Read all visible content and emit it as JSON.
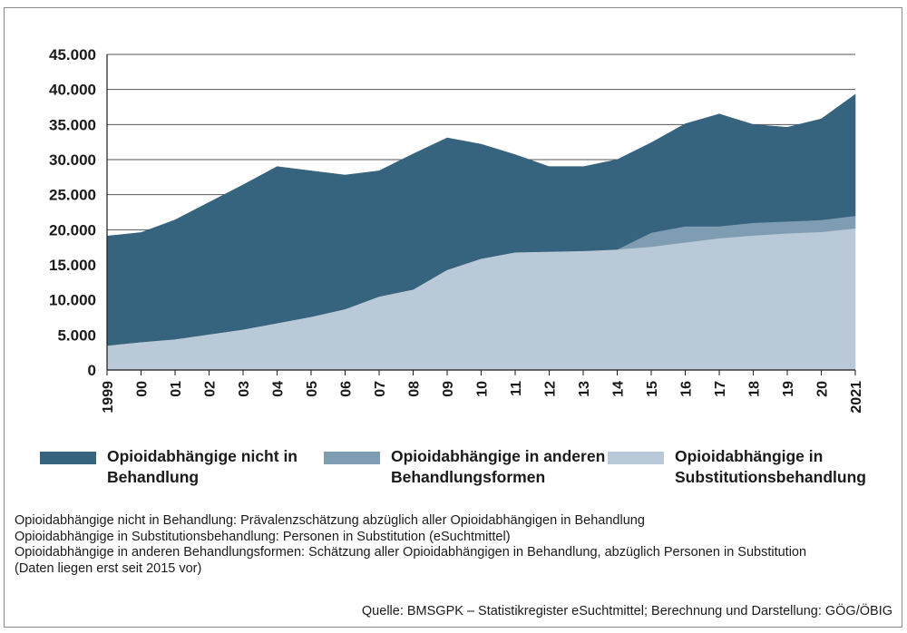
{
  "chart_data": {
    "type": "area",
    "stacked": true,
    "categories": [
      "1999",
      "00",
      "01",
      "02",
      "03",
      "04",
      "05",
      "06",
      "07",
      "08",
      "09",
      "10",
      "11",
      "12",
      "13",
      "14",
      "15",
      "16",
      "17",
      "18",
      "19",
      "20",
      "2021"
    ],
    "series": [
      {
        "name": "Opioidabhängige in Substitutionsbehandlung",
        "color": "#b9c9d7",
        "values": [
          3500,
          4000,
          4400,
          5100,
          5800,
          6700,
          7600,
          8700,
          10500,
          11500,
          14300,
          15900,
          16800,
          16900,
          17000,
          17200,
          17600,
          18200,
          18800,
          19200,
          19500,
          19700,
          20200
        ]
      },
      {
        "name": "Opioidabhängige in anderen Behandlungsformen",
        "color": "#7f9db2",
        "values": [
          0,
          0,
          0,
          0,
          0,
          0,
          0,
          0,
          0,
          0,
          0,
          0,
          0,
          0,
          0,
          0,
          2000,
          2300,
          1700,
          1800,
          1700,
          1700,
          1800
        ]
      },
      {
        "name": "Opioidabhängige nicht in Behandlung",
        "color": "#36637e",
        "values": [
          15600,
          15600,
          17000,
          18800,
          20600,
          22300,
          20800,
          19100,
          17900,
          19300,
          18800,
          16300,
          13900,
          12100,
          12000,
          12800,
          12800,
          14600,
          16000,
          14000,
          13400,
          14400,
          17300
        ]
      }
    ],
    "y_ticks": [
      "0",
      "5.000",
      "10.000",
      "15.000",
      "20.000",
      "25.000",
      "30.000",
      "35.000",
      "40.000",
      "45.000"
    ],
    "ylim": [
      0,
      45000
    ],
    "grid": "horizontal",
    "legend_position": "bottom"
  },
  "notes": [
    "Opioidabhängige nicht in Behandlung: Prävalenzschätzung abzüglich aller Opioidabhängigen in Behandlung",
    "Opioidabhängige in Substitutionsbehandlung: Personen in Substitution (eSuchtmittel)",
    "Opioidabhängige in anderen Behandlungsformen: Schätzung aller Opioidabhängigen in Behandlung, abzüglich Personen in Substitution",
    "(Daten liegen erst seit 2015 vor)"
  ],
  "source": "Quelle: BMSGPK – Statistikregister eSuchtmittel; Berechnung und Darstellung: GÖG/ÖBIG"
}
